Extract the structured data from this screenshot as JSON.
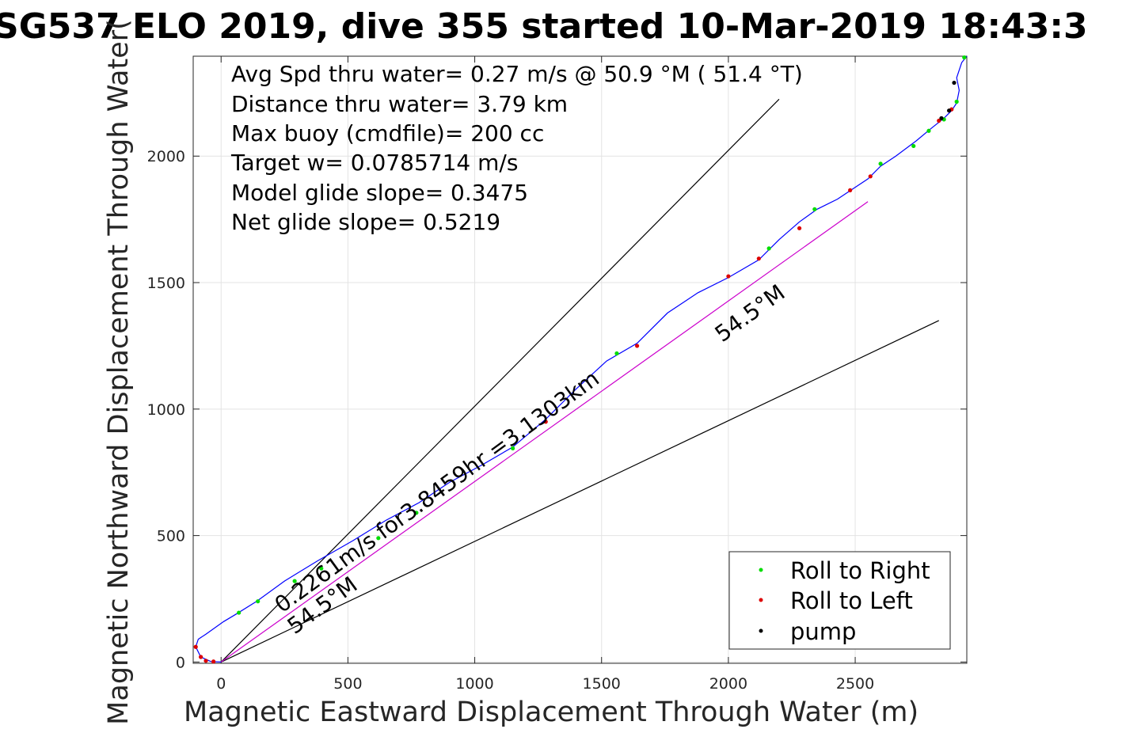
{
  "chart_data": {
    "type": "scatter",
    "title": "SG537 ELO 2019, dive 355 started 10-Mar-2019 18:43:3",
    "xlabel": "Magnetic Eastward Displacement Through Water (m)",
    "ylabel": "Magnetic Northward Displacement Through Water(",
    "xlim": [
      -110,
      2940
    ],
    "ylim": [
      -5,
      2395
    ],
    "xticks": [
      0,
      500,
      1000,
      1500,
      2000,
      2500
    ],
    "yticks": [
      0,
      500,
      1000,
      1500,
      2000
    ],
    "grid": true,
    "annotations": [
      "Avg Spd thru water=  0.27 m/s @  50.9 °M ( 51.4 °T)",
      "Distance thru water=  3.79 km",
      "Max buoy (cmdfile)= 200 cc",
      "Target w= 0.0785714 m/s",
      "Model glide slope= 0.3475",
      "Net glide slope= 0.5219"
    ],
    "line_labels": [
      "54.5°M",
      "54.5°M",
      "0.2261m/s for3.8459hr =3.1303km"
    ],
    "legend": {
      "position": "bottom-right",
      "entries": [
        {
          "label": "Roll to Right",
          "color": "#00dd00"
        },
        {
          "label": "Roll to Left",
          "color": "#dd0000"
        },
        {
          "label": "pump",
          "color": "#000000"
        }
      ]
    },
    "track": {
      "color": "#0000ff",
      "x": [
        0,
        -40,
        -80,
        -100,
        -90,
        -60,
        10,
        60,
        140,
        250,
        380,
        520,
        650,
        780,
        900,
        1030,
        1150,
        1280,
        1400,
        1520,
        1640,
        1760,
        1880,
        2000,
        2120,
        2200,
        2280,
        2350,
        2430,
        2490,
        2550,
        2600,
        2660,
        2740,
        2800,
        2850,
        2880,
        2900,
        2910,
        2900,
        2920,
        2940
      ],
      "y": [
        0,
        2,
        20,
        60,
        90,
        110,
        160,
        190,
        240,
        320,
        400,
        480,
        560,
        630,
        710,
        780,
        850,
        960,
        1080,
        1190,
        1260,
        1380,
        1460,
        1520,
        1590,
        1670,
        1740,
        1790,
        1830,
        1870,
        1910,
        1960,
        2000,
        2060,
        2110,
        2150,
        2180,
        2210,
        2260,
        2310,
        2370,
        2395
      ]
    },
    "model_line": {
      "color": "#cc00cc",
      "x": [
        0,
        2550
      ],
      "y": [
        0,
        1820
      ]
    },
    "heading_lines": [
      {
        "color": "#000000",
        "x": [
          0,
          2200
        ],
        "y": [
          0,
          2225
        ]
      },
      {
        "color": "#000000",
        "x": [
          0,
          2830
        ],
        "y": [
          0,
          1350
        ]
      }
    ],
    "roll_right_points": {
      "color": "#00dd00",
      "x": [
        70,
        145,
        290,
        395,
        620,
        770,
        1150,
        1560,
        2160,
        2340,
        2600,
        2730,
        2790,
        2850,
        2900,
        2930
      ],
      "y": [
        195,
        240,
        320,
        370,
        490,
        590,
        845,
        1220,
        1635,
        1790,
        1970,
        2040,
        2100,
        2145,
        2215,
        2390
      ]
    },
    "roll_left_points": {
      "color": "#dd0000",
      "x": [
        -100,
        -80,
        -60,
        -30,
        1280,
        1640,
        2000,
        2120,
        2280,
        2480,
        2560,
        2830,
        2880
      ],
      "y": [
        60,
        20,
        5,
        2,
        950,
        1250,
        1525,
        1595,
        1715,
        1865,
        1920,
        2140,
        2185
      ]
    },
    "pump_points": {
      "color": "#000000",
      "x": [
        2840,
        2870,
        2890
      ],
      "y": [
        2150,
        2180,
        2290
      ]
    }
  }
}
